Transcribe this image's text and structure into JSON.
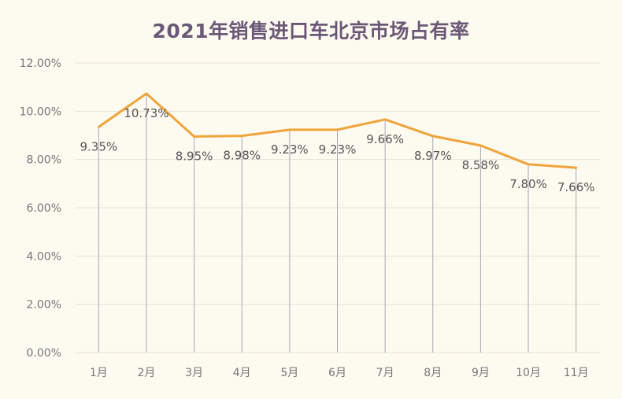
{
  "chart_data": {
    "type": "line",
    "title": "2021年销售进口车北京市场占有率",
    "categories": [
      "1月",
      "2月",
      "3月",
      "4月",
      "5月",
      "6月",
      "7月",
      "8月",
      "9月",
      "10月",
      "11月"
    ],
    "series": [
      {
        "values": [
          9.35,
          10.73,
          8.95,
          8.98,
          9.23,
          9.23,
          9.66,
          8.97,
          8.58,
          7.8,
          7.66
        ]
      }
    ],
    "data_labels": [
      "9.35%",
      "10.73%",
      "8.95%",
      "8.98%",
      "9.23%",
      "9.23%",
      "9.66%",
      "8.97%",
      "8.58%",
      "7.80%",
      "7.66%"
    ],
    "y_ticks": [
      "0.00%",
      "2.00%",
      "4.00%",
      "6.00%",
      "8.00%",
      "10.00%",
      "12.00%"
    ],
    "ylim": [
      0,
      12
    ],
    "grid": true,
    "drop_lines": true,
    "colors": {
      "line": "#f0a43a",
      "grid": "#e6e2d6",
      "drop_line": "#a9a6b8",
      "title": "#6b5876"
    }
  }
}
